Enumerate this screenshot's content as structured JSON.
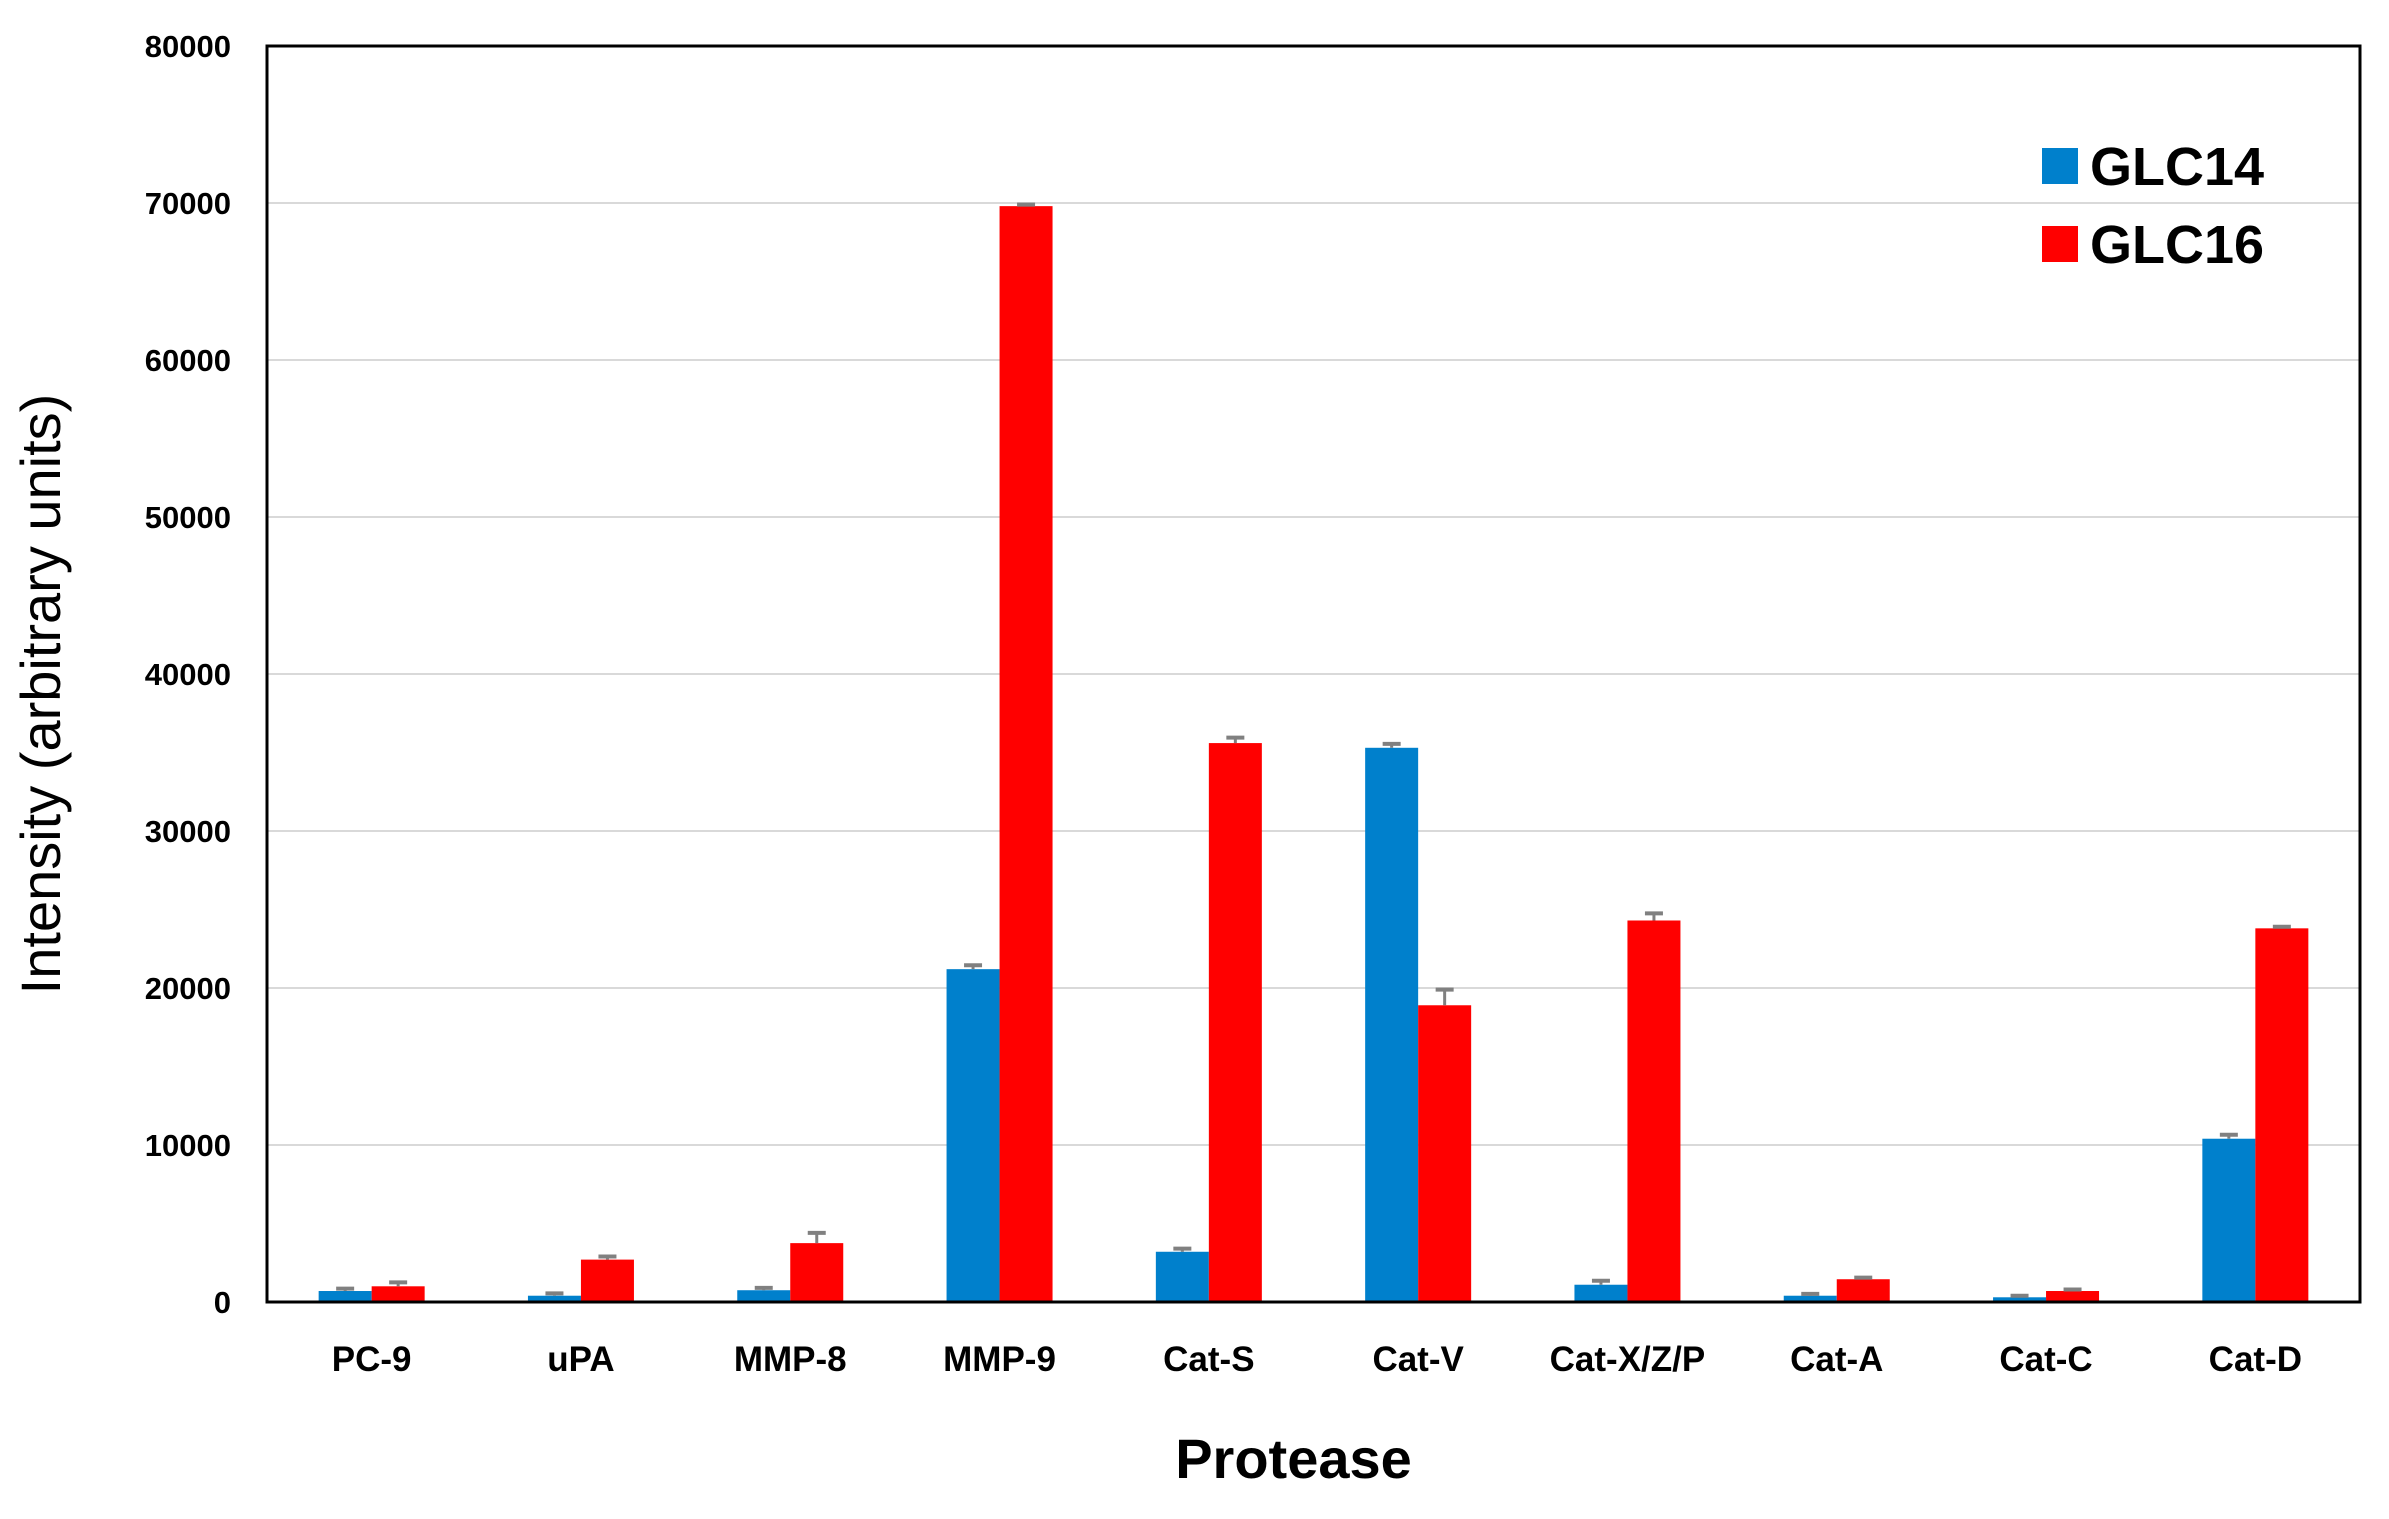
{
  "chart_data": {
    "type": "bar",
    "title": "",
    "xlabel": "Protease",
    "ylabel": "Intensity (arbitrary units)",
    "ylim": [
      0,
      80000
    ],
    "yticks": [
      0,
      10000,
      20000,
      30000,
      40000,
      50000,
      60000,
      70000,
      80000
    ],
    "grid": "horizontal",
    "legend_position": "top-right",
    "categories": [
      "PC-9",
      "uPA",
      "MMP-8",
      "MMP-9",
      "Cat-S",
      "Cat-V",
      "Cat-X/Z/P",
      "Cat-A",
      "Cat-C",
      "Cat-D"
    ],
    "series": [
      {
        "name": "GLC14",
        "color": "#0080CC",
        "values": [
          700,
          400,
          750,
          21200,
          3200,
          35300,
          1100,
          400,
          300,
          10400
        ],
        "errors": [
          150,
          150,
          150,
          250,
          200,
          250,
          250,
          120,
          100,
          250
        ]
      },
      {
        "name": "GLC16",
        "color": "#FF0000",
        "values": [
          1000,
          2700,
          3750,
          69800,
          35600,
          18900,
          24300,
          1450,
          700,
          23800
        ],
        "errors": [
          250,
          200,
          650,
          100,
          350,
          1000,
          450,
          100,
          100,
          100
        ]
      }
    ],
    "error_bar_color": "#808080"
  }
}
